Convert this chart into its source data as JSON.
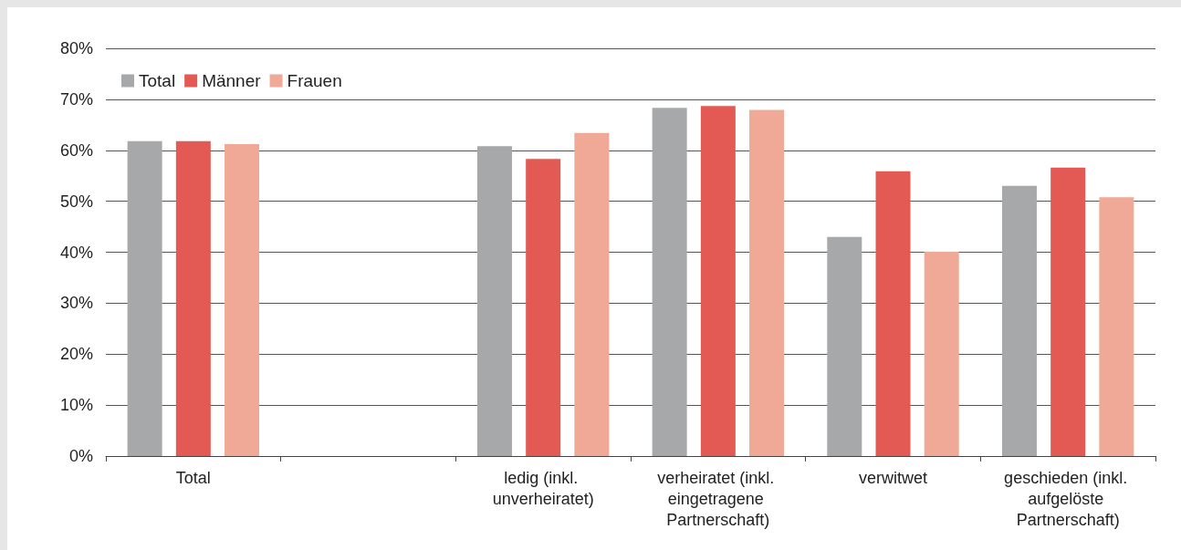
{
  "chart_data": {
    "type": "bar",
    "categories": [
      "Total",
      null,
      "ledig (inkl. unverheiratet)",
      "verheiratet (inkl. eingetragene Partnerschaft)",
      "verwitwet",
      "geschieden (inkl. aufgelöste Partnerschaft)"
    ],
    "series": [
      {
        "name": "Total",
        "color": "#a7a8aa",
        "values": [
          61.8,
          null,
          60.8,
          68.3,
          43.0,
          53.0
        ]
      },
      {
        "name": "Männer",
        "color": "#e25a53",
        "values": [
          61.8,
          null,
          58.3,
          68.7,
          55.9,
          56.6
        ]
      },
      {
        "name": "Frauen",
        "color": "#f0a996",
        "values": [
          61.2,
          null,
          63.4,
          67.9,
          40.1,
          50.8
        ]
      }
    ],
    "ylim": [
      0,
      80
    ],
    "yticks": [
      {
        "value": 0,
        "label": "0%"
      },
      {
        "value": 10,
        "label": "10%"
      },
      {
        "value": 20,
        "label": "20%"
      },
      {
        "value": 30,
        "label": "30%"
      },
      {
        "value": 40,
        "label": "40%"
      },
      {
        "value": 50,
        "label": "50%"
      },
      {
        "value": 60,
        "label": "60%"
      },
      {
        "value": 70,
        "label": "70%"
      },
      {
        "value": 80,
        "label": "80%"
      }
    ],
    "grid": "y",
    "legend": "top left"
  }
}
